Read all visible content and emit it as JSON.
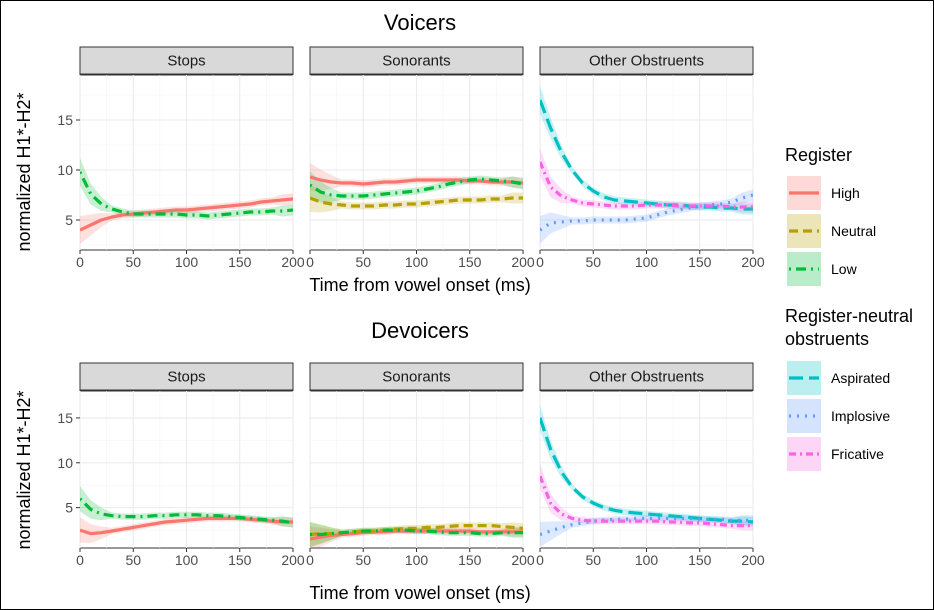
{
  "chart_data": [
    {
      "type": "line",
      "title": "Voicers",
      "xlabel": "Time from vowel onset (ms)",
      "ylabel": "normalized H1*-H2*",
      "xlim": [
        0,
        200
      ],
      "ylim": [
        2.0,
        19.5
      ],
      "x_ticks": [
        0,
        50,
        100,
        150,
        200
      ],
      "y_ticks": [
        5,
        10,
        15
      ],
      "x": [
        0,
        10,
        20,
        30,
        40,
        50,
        60,
        70,
        80,
        90,
        100,
        110,
        120,
        130,
        140,
        150,
        160,
        170,
        180,
        190,
        200
      ],
      "facets": [
        {
          "label": "Stops",
          "series": [
            {
              "name": "High",
              "values": [
                4.0,
                4.5,
                5.0,
                5.3,
                5.5,
                5.6,
                5.7,
                5.8,
                5.9,
                6.0,
                6.0,
                6.1,
                6.2,
                6.3,
                6.4,
                6.5,
                6.6,
                6.8,
                6.9,
                7.0,
                7.1
              ]
            },
            {
              "name": "Low",
              "values": [
                9.8,
                7.6,
                6.6,
                6.1,
                5.8,
                5.6,
                5.6,
                5.6,
                5.6,
                5.6,
                5.5,
                5.5,
                5.4,
                5.5,
                5.6,
                5.7,
                5.8,
                5.8,
                5.9,
                5.9,
                6.0
              ]
            }
          ]
        },
        {
          "label": "Sonorants",
          "series": [
            {
              "name": "High",
              "values": [
                9.3,
                9.0,
                8.8,
                8.7,
                8.7,
                8.6,
                8.7,
                8.8,
                8.8,
                8.9,
                9.0,
                9.0,
                9.0,
                9.0,
                9.0,
                8.9,
                8.9,
                8.8,
                8.8,
                8.8,
                8.7
              ]
            },
            {
              "name": "Neutral",
              "values": [
                7.2,
                6.8,
                6.6,
                6.5,
                6.4,
                6.4,
                6.4,
                6.5,
                6.5,
                6.6,
                6.6,
                6.7,
                6.8,
                6.9,
                7.0,
                7.0,
                7.0,
                7.1,
                7.1,
                7.2,
                7.2
              ]
            },
            {
              "name": "Low",
              "values": [
                8.5,
                7.8,
                7.5,
                7.4,
                7.4,
                7.4,
                7.5,
                7.6,
                7.7,
                7.8,
                7.9,
                8.1,
                8.3,
                8.6,
                8.8,
                9.0,
                9.1,
                9.0,
                8.9,
                8.8,
                8.6
              ]
            }
          ]
        },
        {
          "label": "Other Obstruents",
          "series": [
            {
              "name": "Aspirated",
              "values": [
                17.0,
                14.2,
                11.8,
                10.0,
                8.7,
                7.9,
                7.3,
                7.0,
                6.9,
                6.8,
                6.7,
                6.6,
                6.5,
                6.5,
                6.4,
                6.3,
                6.3,
                6.2,
                6.2,
                6.1,
                6.1
              ]
            },
            {
              "name": "Implosive",
              "values": [
                4.0,
                4.7,
                4.8,
                4.9,
                4.9,
                5.0,
                5.0,
                5.0,
                5.0,
                5.1,
                5.2,
                5.5,
                5.8,
                6.0,
                6.2,
                6.4,
                6.5,
                6.6,
                6.8,
                7.2,
                7.5
              ]
            },
            {
              "name": "Fricative",
              "values": [
                10.8,
                8.3,
                7.4,
                7.0,
                6.7,
                6.6,
                6.5,
                6.4,
                6.4,
                6.4,
                6.5,
                6.5,
                6.5,
                6.4,
                6.4,
                6.4,
                6.4,
                6.4,
                6.3,
                6.3,
                6.3
              ]
            }
          ]
        }
      ]
    },
    {
      "type": "line",
      "title": "Devoicers",
      "xlabel": "Time from vowel onset (ms)",
      "ylabel": "normalized H1*-H2*",
      "xlim": [
        0,
        200
      ],
      "ylim": [
        0.5,
        18.0
      ],
      "x_ticks": [
        0,
        50,
        100,
        150,
        200
      ],
      "y_ticks": [
        5,
        10,
        15
      ],
      "x": [
        0,
        10,
        20,
        30,
        40,
        50,
        60,
        70,
        80,
        90,
        100,
        110,
        120,
        130,
        140,
        150,
        160,
        170,
        180,
        190,
        200
      ],
      "facets": [
        {
          "label": "Stops",
          "series": [
            {
              "name": "High",
              "values": [
                2.5,
                2.1,
                2.2,
                2.4,
                2.6,
                2.8,
                3.0,
                3.2,
                3.4,
                3.5,
                3.6,
                3.7,
                3.8,
                3.8,
                3.8,
                3.8,
                3.7,
                3.6,
                3.5,
                3.4,
                3.4
              ]
            },
            {
              "name": "Low",
              "values": [
                6.0,
                4.8,
                4.3,
                4.1,
                4.0,
                4.0,
                4.0,
                4.1,
                4.1,
                4.2,
                4.2,
                4.2,
                4.1,
                4.1,
                4.0,
                3.9,
                3.8,
                3.7,
                3.6,
                3.5,
                3.3
              ]
            }
          ]
        },
        {
          "label": "Sonorants",
          "series": [
            {
              "name": "High",
              "values": [
                1.5,
                1.7,
                1.9,
                2.0,
                2.1,
                2.2,
                2.3,
                2.3,
                2.4,
                2.4,
                2.4,
                2.4,
                2.4,
                2.4,
                2.4,
                2.4,
                2.3,
                2.3,
                2.3,
                2.3,
                2.3
              ]
            },
            {
              "name": "Neutral",
              "values": [
                2.0,
                2.1,
                2.1,
                2.2,
                2.3,
                2.4,
                2.4,
                2.5,
                2.6,
                2.7,
                2.7,
                2.8,
                2.8,
                2.9,
                3.0,
                3.0,
                3.0,
                3.0,
                2.9,
                2.8,
                2.7
              ]
            },
            {
              "name": "Low",
              "values": [
                2.0,
                2.0,
                2.1,
                2.2,
                2.3,
                2.4,
                2.4,
                2.5,
                2.5,
                2.5,
                2.4,
                2.4,
                2.3,
                2.2,
                2.2,
                2.2,
                2.1,
                2.1,
                2.2,
                2.2,
                2.2
              ]
            }
          ]
        },
        {
          "label": "Other Obstruents",
          "series": [
            {
              "name": "Aspirated",
              "values": [
                15.0,
                11.5,
                9.0,
                7.3,
                6.2,
                5.5,
                5.0,
                4.7,
                4.5,
                4.4,
                4.3,
                4.2,
                4.1,
                4.0,
                3.9,
                3.8,
                3.7,
                3.6,
                3.5,
                3.5,
                3.4
              ]
            },
            {
              "name": "Implosive",
              "values": [
                2.0,
                2.4,
                2.8,
                3.1,
                3.3,
                3.5,
                3.6,
                3.7,
                3.7,
                3.8,
                3.8,
                3.8,
                3.8,
                3.8,
                3.8,
                3.7,
                3.7,
                3.7,
                3.6,
                3.6,
                3.6
              ]
            },
            {
              "name": "Fricative",
              "values": [
                8.5,
                5.5,
                4.3,
                3.8,
                3.6,
                3.5,
                3.5,
                3.5,
                3.5,
                3.5,
                3.5,
                3.5,
                3.4,
                3.4,
                3.3,
                3.3,
                3.2,
                3.1,
                3.0,
                3.0,
                3.0
              ]
            }
          ]
        }
      ]
    }
  ],
  "legends": [
    {
      "title": "Register",
      "items": [
        {
          "name": "High",
          "color": "#f8766d",
          "dash": "solid"
        },
        {
          "name": "Neutral",
          "color": "#b79f00",
          "dash": "dashed"
        },
        {
          "name": "Low",
          "color": "#00ba38",
          "dash": "dotdash"
        }
      ]
    },
    {
      "title_lines": [
        "Register-neutral",
        "obstruents"
      ],
      "items": [
        {
          "name": "Aspirated",
          "color": "#00bfc4",
          "dash": "longdash"
        },
        {
          "name": "Implosive",
          "color": "#619cff",
          "dash": "dotted"
        },
        {
          "name": "Fricative",
          "color": "#f564e3",
          "dash": "twodash"
        }
      ]
    }
  ],
  "ribbon_opacity": 0.22
}
